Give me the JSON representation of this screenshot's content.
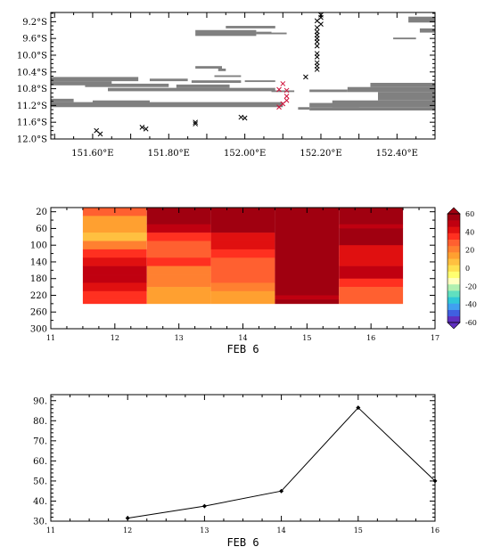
{
  "chart_data": [
    {
      "type": "scatter",
      "subtype": "map-track",
      "x_ticks": [
        {
          "value": 151.6,
          "label": "151.60°E"
        },
        {
          "value": 151.8,
          "label": "151.80°E"
        },
        {
          "value": 152.0,
          "label": "152.00°E"
        },
        {
          "value": 152.2,
          "label": "152.20°E"
        },
        {
          "value": 152.4,
          "label": "152.40°E"
        }
      ],
      "y_ticks": [
        {
          "value": -9.2,
          "label": "9.2°S"
        },
        {
          "value": -9.6,
          "label": "9.6°S"
        },
        {
          "value": -10.0,
          "label": "10.0°S"
        },
        {
          "value": -10.4,
          "label": "10.4°S"
        },
        {
          "value": -10.8,
          "label": "10.8°S"
        },
        {
          "value": -11.2,
          "label": "11.2°S"
        },
        {
          "value": -11.6,
          "label": "11.6°S"
        },
        {
          "value": -12.0,
          "label": "12.0°S"
        }
      ],
      "xlim": [
        151.49,
        152.5
      ],
      "ylim": [
        -12.0,
        -8.98
      ],
      "colors": {
        "land": "#808080",
        "black_marker": "#000000",
        "red_marker": "#d0103a"
      },
      "land_bars": [
        {
          "lon": [
            151.49,
            151.72
          ],
          "lat": [
            -10.52,
            -10.62
          ]
        },
        {
          "lon": [
            151.49,
            151.65
          ],
          "lat": [
            -10.62,
            -10.72
          ]
        },
        {
          "lon": [
            151.58,
            151.8
          ],
          "lat": [
            -10.68,
            -10.76
          ]
        },
        {
          "lon": [
            151.75,
            151.85
          ],
          "lat": [
            -10.56,
            -10.62
          ]
        },
        {
          "lon": [
            151.82,
            151.96
          ],
          "lat": [
            -10.7,
            -10.78
          ]
        },
        {
          "lon": [
            151.86,
            151.99
          ],
          "lat": [
            -10.6,
            -10.66
          ]
        },
        {
          "lon": [
            151.64,
            152.08
          ],
          "lat": [
            -10.78,
            -10.86
          ]
        },
        {
          "lon": [
            152.07,
            152.13
          ],
          "lat": [
            -10.84,
            -10.88
          ]
        },
        {
          "lon": [
            151.49,
            152.1
          ],
          "lat": [
            -11.12,
            -11.24
          ]
        },
        {
          "lon": [
            151.49,
            151.55
          ],
          "lat": [
            -11.04,
            -11.12
          ]
        },
        {
          "lon": [
            151.6,
            151.75
          ],
          "lat": [
            -11.08,
            -11.14
          ]
        },
        {
          "lon": [
            152.17,
            152.27
          ],
          "lat": [
            -10.82,
            -10.88
          ]
        },
        {
          "lon": [
            152.27,
            152.5
          ],
          "lat": [
            -10.76,
            -10.88
          ]
        },
        {
          "lon": [
            152.33,
            152.5
          ],
          "lat": [
            -10.66,
            -10.76
          ]
        },
        {
          "lon": [
            152.35,
            152.5
          ],
          "lat": [
            -10.88,
            -11.08
          ]
        },
        {
          "lon": [
            152.23,
            152.5
          ],
          "lat": [
            -11.08,
            -11.24
          ]
        },
        {
          "lon": [
            152.17,
            152.3
          ],
          "lat": [
            -11.14,
            -11.24
          ]
        },
        {
          "lon": [
            152.17,
            152.5
          ],
          "lat": [
            -11.24,
            -11.32
          ]
        },
        {
          "lon": [
            152.14,
            152.17
          ],
          "lat": [
            -11.24,
            -11.3
          ]
        },
        {
          "lon": [
            151.87,
            152.03
          ],
          "lat": [
            -9.4,
            -9.54
          ]
        },
        {
          "lon": [
            152.03,
            152.07
          ],
          "lat": [
            -9.44,
            -9.5
          ]
        },
        {
          "lon": [
            152.07,
            152.11
          ],
          "lat": [
            -9.46,
            -9.5
          ]
        },
        {
          "lon": [
            151.95,
            152.08
          ],
          "lat": [
            -9.3,
            -9.36
          ]
        },
        {
          "lon": [
            151.87,
            151.94
          ],
          "lat": [
            -10.26,
            -10.32
          ]
        },
        {
          "lon": [
            151.93,
            151.95
          ],
          "lat": [
            -10.32,
            -10.38
          ]
        },
        {
          "lon": [
            151.92,
            151.99
          ],
          "lat": [
            -10.48,
            -10.52
          ]
        },
        {
          "lon": [
            152.0,
            152.08
          ],
          "lat": [
            -10.6,
            -10.64
          ]
        },
        {
          "lon": [
            152.39,
            152.45
          ],
          "lat": [
            -9.58,
            -9.62
          ]
        },
        {
          "lon": [
            152.43,
            152.5
          ],
          "lat": [
            -9.08,
            -9.22
          ]
        },
        {
          "lon": [
            152.46,
            152.5
          ],
          "lat": [
            -9.36,
            -9.46
          ]
        }
      ],
      "series": [
        {
          "color": "black",
          "points": [
            [
              152.2,
              -9.04
            ],
            [
              152.2,
              -9.1
            ],
            [
              152.19,
              -9.18
            ],
            [
              152.2,
              -9.26
            ],
            [
              152.19,
              -9.34
            ],
            [
              152.19,
              -9.44
            ],
            [
              152.19,
              -9.52
            ],
            [
              152.19,
              -9.6
            ],
            [
              152.19,
              -9.68
            ],
            [
              152.19,
              -9.78
            ],
            [
              152.19,
              -9.96
            ],
            [
              152.19,
              -10.04
            ],
            [
              152.19,
              -10.18
            ],
            [
              152.19,
              -10.26
            ],
            [
              152.19,
              -10.34
            ],
            [
              152.16,
              -10.52
            ],
            [
              151.61,
              -11.8
            ],
            [
              151.62,
              -11.88
            ],
            [
              151.73,
              -11.72
            ],
            [
              151.74,
              -11.76
            ],
            [
              151.87,
              -11.6
            ],
            [
              151.87,
              -11.64
            ],
            [
              151.99,
              -11.48
            ],
            [
              152.0,
              -11.5
            ]
          ]
        },
        {
          "color": "red",
          "points": [
            [
              152.09,
              -10.82
            ],
            [
              152.1,
              -10.68
            ],
            [
              152.11,
              -10.84
            ],
            [
              152.11,
              -10.98
            ],
            [
              152.11,
              -11.08
            ],
            [
              152.1,
              -11.16
            ],
            [
              152.09,
              -11.24
            ]
          ]
        }
      ]
    },
    {
      "type": "heatmap",
      "x_label": "FEB  6",
      "x_ticks": [
        11,
        12,
        13,
        14,
        15,
        16,
        17
      ],
      "xlim": [
        11,
        17
      ],
      "y_ticks": [
        20,
        60,
        100,
        140,
        180,
        220,
        260,
        300
      ],
      "ylim": [
        300,
        10
      ],
      "columns": [
        {
          "x_range": [
            11.5,
            12.5
          ],
          "bands": [
            {
              "depth": [
                10,
                30
              ],
              "value": 25
            },
            {
              "depth": [
                30,
                50
              ],
              "value": 17
            },
            {
              "depth": [
                50,
                70
              ],
              "value": 12
            },
            {
              "depth": [
                70,
                90
              ],
              "value": 9
            },
            {
              "depth": [
                90,
                110
              ],
              "value": 20
            },
            {
              "depth": [
                110,
                130
              ],
              "value": 35
            },
            {
              "depth": [
                130,
                150
              ],
              "value": 45
            },
            {
              "depth": [
                150,
                170
              ],
              "value": 50
            },
            {
              "depth": [
                170,
                190
              ],
              "value": 48
            },
            {
              "depth": [
                190,
                210
              ],
              "value": 42
            },
            {
              "depth": [
                210,
                230
              ],
              "value": 36
            },
            {
              "depth": [
                230,
                240
              ],
              "value": 32
            }
          ]
        },
        {
          "x_range": [
            12.5,
            13.5
          ],
          "bands": [
            {
              "depth": [
                10,
                50
              ],
              "value": 60
            },
            {
              "depth": [
                50,
                70
              ],
              "value": 48
            },
            {
              "depth": [
                70,
                90
              ],
              "value": 38
            },
            {
              "depth": [
                90,
                110
              ],
              "value": 30
            },
            {
              "depth": [
                110,
                130
              ],
              "value": 26
            },
            {
              "depth": [
                130,
                150
              ],
              "value": 34
            },
            {
              "depth": [
                150,
                170
              ],
              "value": 24
            },
            {
              "depth": [
                170,
                200
              ],
              "value": 18
            },
            {
              "depth": [
                200,
                240
              ],
              "value": 15
            }
          ]
        },
        {
          "x_range": [
            13.5,
            14.5
          ],
          "bands": [
            {
              "depth": [
                10,
                70
              ],
              "value": 60
            },
            {
              "depth": [
                70,
                90
              ],
              "value": 42
            },
            {
              "depth": [
                90,
                110
              ],
              "value": 40
            },
            {
              "depth": [
                110,
                130
              ],
              "value": 36
            },
            {
              "depth": [
                130,
                160
              ],
              "value": 30
            },
            {
              "depth": [
                160,
                190
              ],
              "value": 26
            },
            {
              "depth": [
                190,
                210
              ],
              "value": 22
            },
            {
              "depth": [
                210,
                240
              ],
              "value": 16
            }
          ]
        },
        {
          "x_range": [
            14.5,
            15.5
          ],
          "bands": [
            {
              "depth": [
                10,
                220
              ],
              "value": 60
            },
            {
              "depth": [
                220,
                230
              ],
              "value": 48
            },
            {
              "depth": [
                230,
                240
              ],
              "value": 58
            }
          ]
        },
        {
          "x_range": [
            15.5,
            16.5
          ],
          "bands": [
            {
              "depth": [
                10,
                50
              ],
              "value": 60
            },
            {
              "depth": [
                50,
                60
              ],
              "value": 52
            },
            {
              "depth": [
                60,
                100
              ],
              "value": 56
            },
            {
              "depth": [
                100,
                130
              ],
              "value": 44
            },
            {
              "depth": [
                130,
                150
              ],
              "value": 40
            },
            {
              "depth": [
                150,
                180
              ],
              "value": 46
            },
            {
              "depth": [
                180,
                200
              ],
              "value": 36
            },
            {
              "depth": [
                200,
                240
              ],
              "value": 28
            }
          ]
        }
      ],
      "colorbar": {
        "ticks": [
          60,
          40,
          20,
          0,
          -20,
          -40,
          -60
        ],
        "range": [
          -60,
          60
        ],
        "colors": [
          "#6030c0",
          "#4060e0",
          "#40a0f0",
          "#30c8d8",
          "#60e0c0",
          "#b0f0b0",
          "#ffffc0",
          "#ffff70",
          "#ffe050",
          "#ffc040",
          "#ffa030",
          "#ff8030",
          "#ff6030",
          "#ff3020",
          "#e01010",
          "#c00010",
          "#a00010"
        ]
      }
    },
    {
      "type": "line",
      "x_label": "FEB  6",
      "x_ticks": [
        11,
        12,
        13,
        14,
        15,
        16
      ],
      "xlim": [
        11,
        16
      ],
      "y_ticks": [
        30,
        40,
        50,
        60,
        70,
        80,
        90
      ],
      "y_tick_labels": [
        "30.",
        "40.",
        "50.",
        "60.",
        "70.",
        "80.",
        "90."
      ],
      "ylim": [
        30,
        93
      ],
      "x": [
        12,
        13,
        14,
        15,
        16
      ],
      "y": [
        31.5,
        37.5,
        45.0,
        86.5,
        50.0
      ]
    }
  ]
}
